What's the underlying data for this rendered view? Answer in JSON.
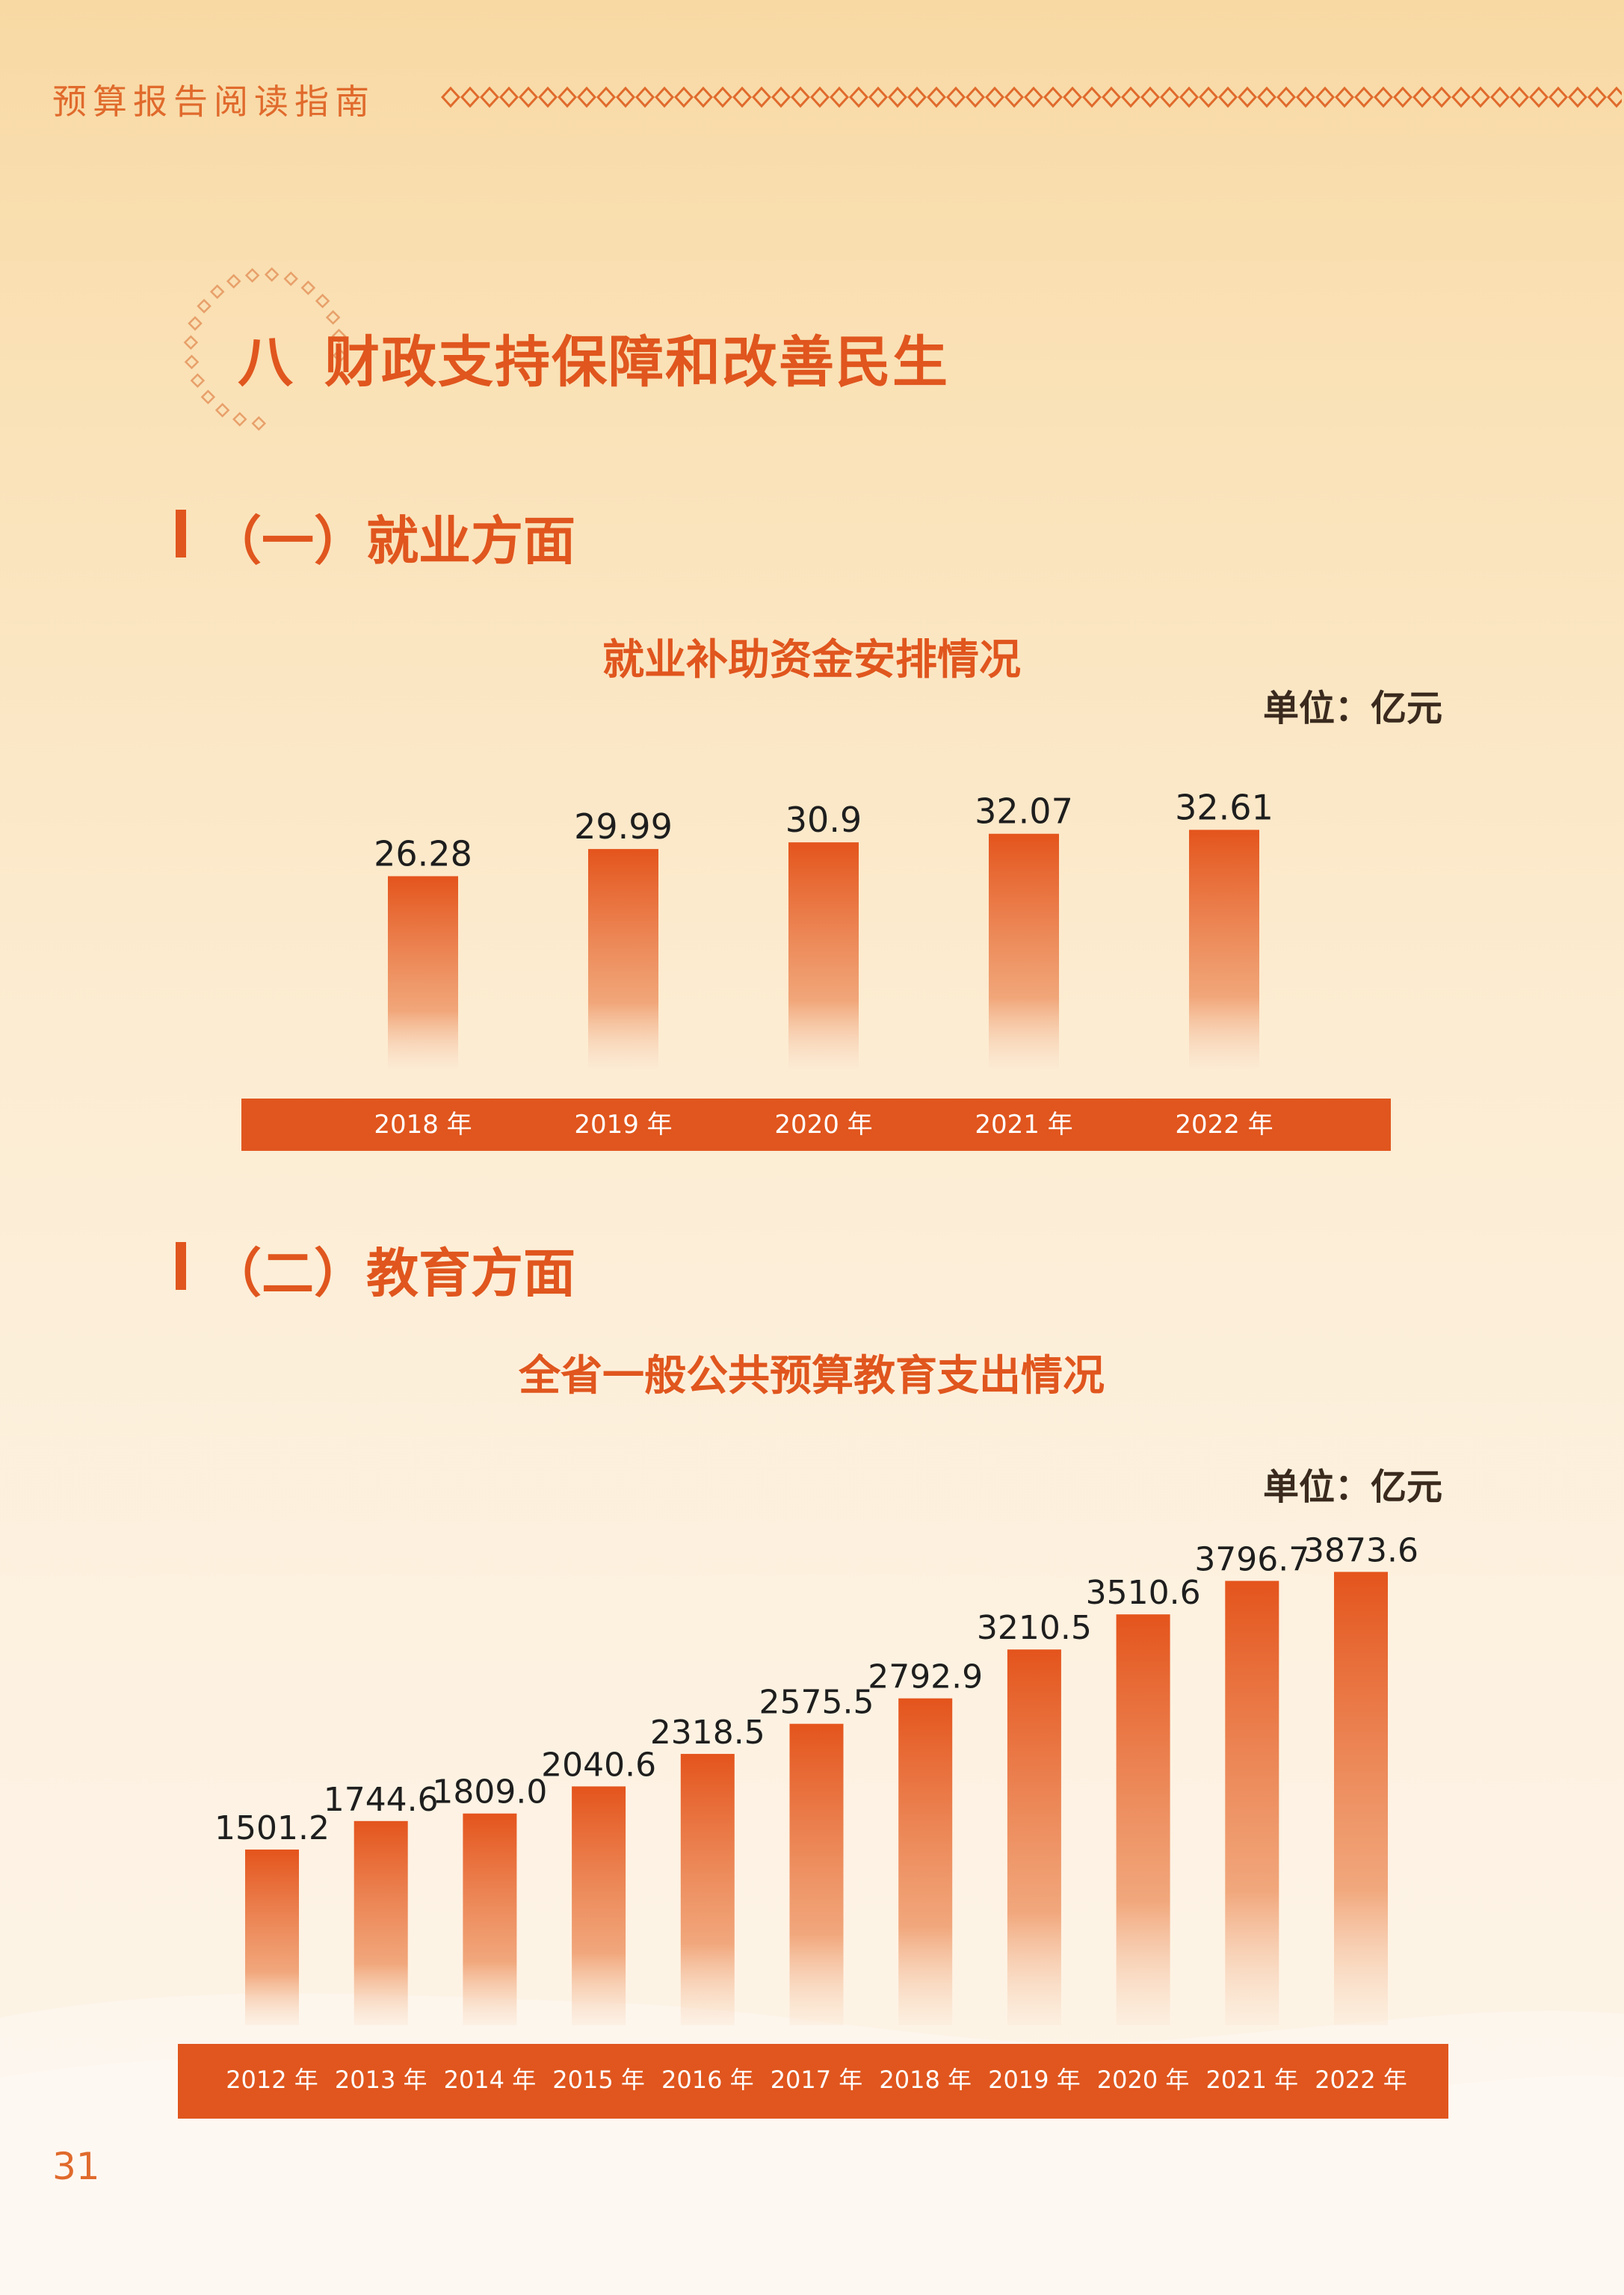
{
  "header": {
    "running_title": "预算报告阅读指南"
  },
  "section": {
    "number": "八",
    "title": "财政支持保障和改善民生"
  },
  "subsections": [
    {
      "label": "（一）就业方面"
    },
    {
      "label": "（二）教育方面"
    }
  ],
  "page_number": "31",
  "colors": {
    "accent": "#e0561e",
    "bar_top": "#e4541c",
    "text_dark": "#1e1e1e"
  },
  "chart_data": [
    {
      "type": "bar",
      "title": "就业补助资金安排情况",
      "unit": "单位：亿元",
      "categories": [
        "2018 年",
        "2019 年",
        "2020 年",
        "2021 年",
        "2022 年"
      ],
      "values": [
        26.28,
        29.99,
        30.9,
        32.07,
        32.61
      ],
      "value_labels": [
        "26.28",
        "29.99",
        "30.9",
        "32.07",
        "32.61"
      ]
    },
    {
      "type": "bar",
      "title": "全省一般公共预算教育支出情况",
      "unit": "单位：亿元",
      "categories": [
        "2012 年",
        "2013 年",
        "2014 年",
        "2015 年",
        "2016 年",
        "2017 年",
        "2018 年",
        "2019 年",
        "2020 年",
        "2021 年",
        "2022 年"
      ],
      "values": [
        1501.2,
        1744.6,
        1809.0,
        2040.6,
        2318.5,
        2575.5,
        2792.9,
        3210.5,
        3510.6,
        3796.7,
        3873.6
      ],
      "value_labels": [
        "1501.2",
        "1744.6",
        "1809.0",
        "2040.6",
        "2318.5",
        "2575.5",
        "2792.9",
        "3210.5",
        "3510.6",
        "3796.7",
        "3873.6"
      ]
    }
  ]
}
